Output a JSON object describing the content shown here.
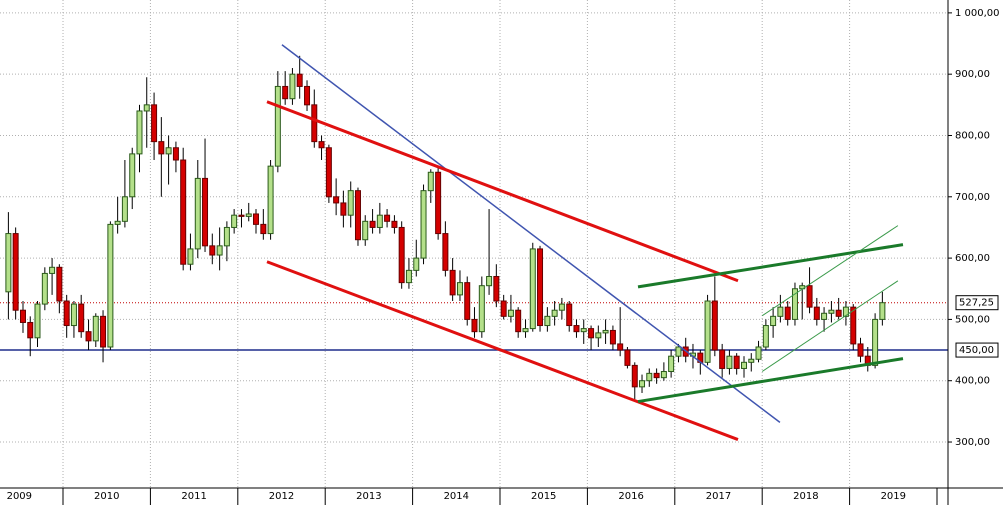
{
  "chart_data": {
    "type": "candlestick",
    "x": [
      2009.375,
      2009.458,
      2009.542,
      2009.625,
      2009.708,
      2009.792,
      2009.875,
      2009.958,
      2010.042,
      2010.125,
      2010.208,
      2010.292,
      2010.375,
      2010.458,
      2010.542,
      2010.625,
      2010.708,
      2010.792,
      2010.875,
      2010.958,
      2011.042,
      2011.125,
      2011.208,
      2011.292,
      2011.375,
      2011.458,
      2011.542,
      2011.625,
      2011.708,
      2011.792,
      2011.875,
      2011.958,
      2012.042,
      2012.125,
      2012.208,
      2012.292,
      2012.375,
      2012.458,
      2012.542,
      2012.625,
      2012.708,
      2012.792,
      2012.875,
      2012.958,
      2013.042,
      2013.125,
      2013.208,
      2013.292,
      2013.375,
      2013.458,
      2013.542,
      2013.625,
      2013.708,
      2013.792,
      2013.875,
      2013.958,
      2014.042,
      2014.125,
      2014.208,
      2014.292,
      2014.375,
      2014.458,
      2014.542,
      2014.625,
      2014.708,
      2014.792,
      2014.875,
      2014.958,
      2015.042,
      2015.125,
      2015.208,
      2015.292,
      2015.375,
      2015.458,
      2015.542,
      2015.625,
      2015.708,
      2015.792,
      2015.875,
      2015.958,
      2016.042,
      2016.125,
      2016.208,
      2016.292,
      2016.375,
      2016.458,
      2016.542,
      2016.625,
      2016.708,
      2016.792,
      2016.875,
      2016.958,
      2017.042,
      2017.125,
      2017.208,
      2017.292,
      2017.375,
      2017.458,
      2017.542,
      2017.625,
      2017.708,
      2017.792,
      2017.875,
      2017.958,
      2018.042,
      2018.125,
      2018.208,
      2018.292,
      2018.375,
      2018.458,
      2018.542,
      2018.625,
      2018.708,
      2018.792,
      2018.875,
      2018.958,
      2019.042,
      2019.125,
      2019.208,
      2019.292,
      2019.375
    ],
    "open": [
      545,
      640,
      515,
      495,
      470,
      525,
      575,
      585,
      530,
      490,
      525,
      480,
      465,
      505,
      455,
      655,
      660,
      700,
      770,
      840,
      850,
      790,
      770,
      780,
      760,
      590,
      615,
      730,
      620,
      605,
      620,
      650,
      670,
      668,
      672,
      655,
      640,
      750,
      880,
      860,
      900,
      880,
      850,
      790,
      780,
      700,
      690,
      670,
      710,
      630,
      660,
      650,
      670,
      660,
      650,
      560,
      580,
      600,
      710,
      740,
      640,
      580,
      540,
      560,
      500,
      480,
      555,
      570,
      530,
      505,
      515,
      480,
      485,
      615,
      490,
      505,
      515,
      525,
      490,
      480,
      485,
      470,
      478,
      482,
      460,
      450,
      425,
      390,
      400,
      412,
      405,
      415,
      440,
      455,
      440,
      445,
      430,
      530,
      450,
      420,
      440,
      420,
      430,
      435,
      455,
      490,
      505,
      520,
      500,
      550,
      555,
      520,
      500,
      510,
      515,
      505,
      520,
      460,
      440,
      425,
      500
    ],
    "high": [
      675,
      650,
      530,
      505,
      530,
      585,
      600,
      590,
      540,
      530,
      540,
      500,
      510,
      515,
      660,
      700,
      760,
      780,
      850,
      895,
      870,
      830,
      800,
      790,
      780,
      640,
      760,
      795,
      640,
      650,
      660,
      680,
      680,
      690,
      680,
      680,
      760,
      905,
      905,
      910,
      930,
      890,
      875,
      800,
      785,
      730,
      710,
      725,
      715,
      670,
      680,
      690,
      680,
      670,
      660,
      600,
      630,
      720,
      745,
      750,
      660,
      600,
      580,
      570,
      520,
      570,
      680,
      590,
      540,
      540,
      520,
      500,
      625,
      620,
      520,
      530,
      535,
      530,
      500,
      500,
      490,
      490,
      500,
      490,
      520,
      455,
      430,
      410,
      420,
      420,
      430,
      450,
      460,
      470,
      460,
      450,
      540,
      570,
      460,
      450,
      445,
      440,
      445,
      465,
      500,
      520,
      540,
      530,
      560,
      560,
      585,
      535,
      520,
      530,
      535,
      530,
      525,
      470,
      455,
      510,
      545
    ],
    "low": [
      500,
      500,
      478,
      440,
      455,
      515,
      540,
      510,
      470,
      470,
      470,
      450,
      455,
      430,
      450,
      640,
      650,
      680,
      740,
      780,
      760,
      700,
      720,
      740,
      580,
      580,
      600,
      610,
      590,
      580,
      595,
      640,
      650,
      660,
      640,
      630,
      630,
      740,
      850,
      850,
      860,
      840,
      780,
      760,
      690,
      670,
      650,
      650,
      620,
      620,
      640,
      640,
      650,
      640,
      550,
      550,
      570,
      590,
      690,
      630,
      570,
      530,
      530,
      490,
      470,
      470,
      540,
      520,
      500,
      495,
      470,
      470,
      480,
      480,
      480,
      490,
      500,
      480,
      470,
      460,
      450,
      455,
      460,
      450,
      440,
      420,
      370,
      380,
      390,
      395,
      400,
      405,
      430,
      430,
      420,
      410,
      425,
      440,
      405,
      410,
      410,
      405,
      415,
      430,
      450,
      470,
      495,
      490,
      490,
      500,
      510,
      490,
      480,
      495,
      500,
      490,
      450,
      430,
      415,
      420,
      490
    ],
    "close": [
      640,
      515,
      495,
      470,
      525,
      575,
      585,
      530,
      490,
      525,
      480,
      465,
      505,
      455,
      655,
      660,
      700,
      770,
      840,
      850,
      790,
      770,
      780,
      760,
      590,
      615,
      730,
      620,
      605,
      620,
      650,
      670,
      668,
      672,
      655,
      640,
      750,
      880,
      860,
      900,
      880,
      850,
      790,
      780,
      700,
      690,
      670,
      710,
      630,
      660,
      650,
      670,
      660,
      650,
      560,
      580,
      600,
      710,
      740,
      640,
      580,
      540,
      560,
      500,
      480,
      555,
      570,
      530,
      505,
      515,
      480,
      485,
      615,
      490,
      505,
      515,
      525,
      490,
      480,
      485,
      470,
      478,
      482,
      460,
      450,
      425,
      390,
      400,
      412,
      405,
      415,
      440,
      455,
      440,
      445,
      430,
      530,
      450,
      420,
      440,
      420,
      430,
      435,
      455,
      490,
      505,
      520,
      500,
      550,
      555,
      520,
      500,
      510,
      515,
      505,
      520,
      460,
      440,
      425,
      500,
      527.25
    ],
    "up_color": "#b4e08a",
    "down_color": "#d40000",
    "xlim": [
      2009.279,
      2020.126
    ],
    "ylim": [
      225,
      1021
    ],
    "xticks": [
      {
        "value": 2009,
        "label": "2009"
      },
      {
        "value": 2010,
        "label": "2010"
      },
      {
        "value": 2011,
        "label": "2011"
      },
      {
        "value": 2012,
        "label": "2012"
      },
      {
        "value": 2013,
        "label": "2013"
      },
      {
        "value": 2014,
        "label": "2014"
      },
      {
        "value": 2015,
        "label": "2015"
      },
      {
        "value": 2016,
        "label": "2016"
      },
      {
        "value": 2017,
        "label": "2017"
      },
      {
        "value": 2018,
        "label": "2018"
      },
      {
        "value": 2019,
        "label": "2019"
      }
    ],
    "yticks": [
      {
        "value": 300,
        "label": "300,00"
      },
      {
        "value": 400,
        "label": "400,00"
      },
      {
        "value": 500,
        "label": "500,00"
      },
      {
        "value": 600,
        "label": "600,00"
      },
      {
        "value": 700,
        "label": "700,00"
      },
      {
        "value": 800,
        "label": "800,00"
      },
      {
        "value": 900,
        "label": "900,00"
      },
      {
        "value": 1000,
        "label": "1 000,00"
      }
    ],
    "grid": true,
    "hlines": [
      {
        "value": 527.25,
        "label": "527,25",
        "color": "#c00000",
        "dash": true
      },
      {
        "value": 450,
        "label": "450,00",
        "color": "#1f2d8c",
        "dash": false
      }
    ],
    "trendlines": [
      {
        "x": [
          2012.505,
          2018.203
        ],
        "y": [
          948,
          332
        ],
        "color": "#4055b0",
        "width": 1.5
      },
      {
        "x": [
          2012.334,
          2017.723
        ],
        "y": [
          855,
          563
        ],
        "color": "#e01010",
        "width": 3
      },
      {
        "x": [
          2012.334,
          2017.723
        ],
        "y": [
          594,
          304
        ],
        "color": "#e01010",
        "width": 3
      },
      {
        "x": [
          2016.579,
          2019.611
        ],
        "y": [
          553,
          622
        ],
        "color": "#1a7a2a",
        "width": 3
      },
      {
        "x": [
          2016.579,
          2019.611
        ],
        "y": [
          366,
          436
        ],
        "color": "#1a7a2a",
        "width": 3
      },
      {
        "x": [
          2018.0,
          2019.553
        ],
        "y": [
          506,
          653
        ],
        "color": "#3a9a4a",
        "width": 1
      },
      {
        "x": [
          2018.0,
          2019.553
        ],
        "y": [
          415,
          563
        ],
        "color": "#3a9a4a",
        "width": 1
      }
    ]
  }
}
